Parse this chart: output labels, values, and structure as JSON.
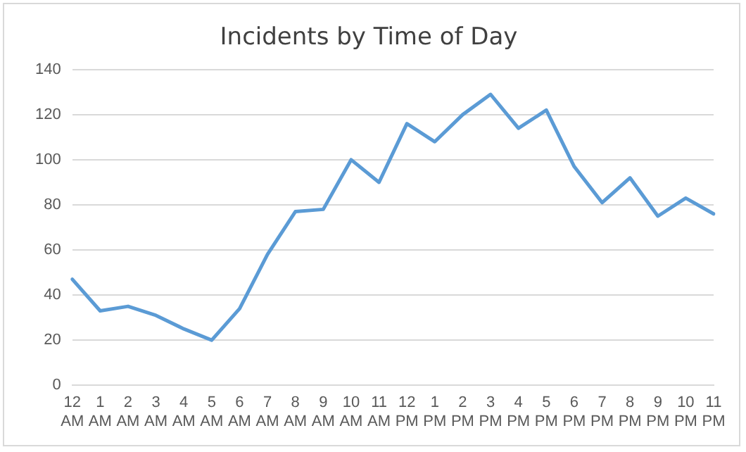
{
  "chart_data": {
    "type": "line",
    "title": "Incidents by Time of Day",
    "categories": [
      "12 AM",
      "1 AM",
      "2 AM",
      "3 AM",
      "4 AM",
      "5 AM",
      "6 AM",
      "7 AM",
      "8 AM",
      "9 AM",
      "10 AM",
      "11 AM",
      "12 PM",
      "1 PM",
      "2 PM",
      "3 PM",
      "4 PM",
      "5 PM",
      "6 PM",
      "7 PM",
      "8 PM",
      "9 PM",
      "10 PM",
      "11 PM"
    ],
    "series": [
      {
        "color": "#5b9bd5",
        "values": [
          47,
          33,
          35,
          31,
          25,
          20,
          34,
          58,
          77,
          78,
          100,
          90,
          116,
          108,
          120,
          129,
          114,
          122,
          97,
          81,
          92,
          75,
          83,
          76
        ]
      }
    ],
    "ylim": [
      0,
      140
    ],
    "yticks": [
      0,
      20,
      40,
      60,
      80,
      100,
      120,
      140
    ],
    "grid": "y",
    "legend": false,
    "marker": "none",
    "line_style": "solid"
  }
}
